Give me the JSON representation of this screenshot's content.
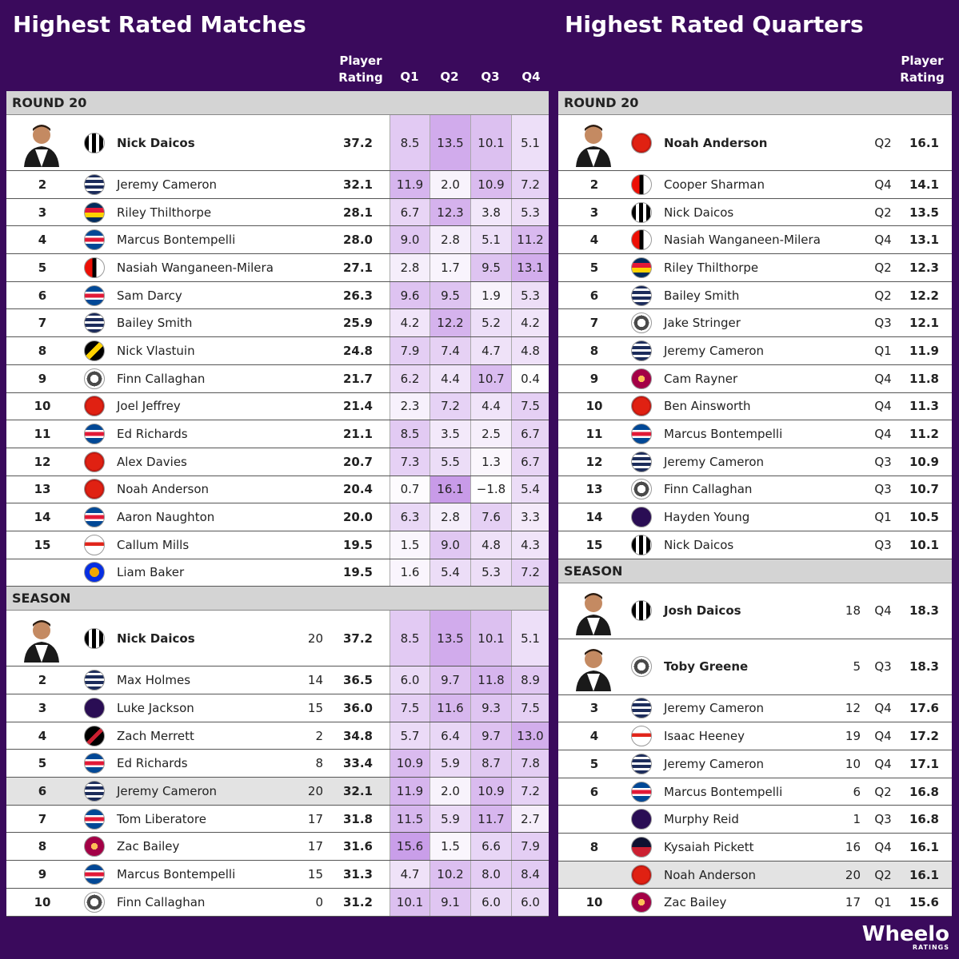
{
  "left": {
    "title": "Highest Rated Matches",
    "headers": {
      "rating": [
        "Player",
        "Rating"
      ],
      "q1": "Q1",
      "q2": "Q2",
      "q3": "Q3",
      "q4": "Q4"
    },
    "round_label": "ROUND 20",
    "season_label": "SEASON",
    "round_rows": [
      {
        "rank": "",
        "name": "Nick Daicos",
        "rating": "37.2",
        "q": [
          "8.5",
          "13.5",
          "10.1",
          "5.1"
        ],
        "team": "collingwood",
        "photo": true
      },
      {
        "rank": "2",
        "name": "Jeremy Cameron",
        "rating": "32.1",
        "q": [
          "11.9",
          "2.0",
          "10.9",
          "7.2"
        ],
        "team": "geelong"
      },
      {
        "rank": "3",
        "name": "Riley Thilthorpe",
        "rating": "28.1",
        "q": [
          "6.7",
          "12.3",
          "3.8",
          "5.3"
        ],
        "team": "adelaide"
      },
      {
        "rank": "4",
        "name": "Marcus Bontempelli",
        "rating": "28.0",
        "q": [
          "9.0",
          "2.8",
          "5.1",
          "11.2"
        ],
        "team": "bulldogs"
      },
      {
        "rank": "5",
        "name": "Nasiah Wanganeen-Milera",
        "rating": "27.1",
        "q": [
          "2.8",
          "1.7",
          "9.5",
          "13.1"
        ],
        "team": "stkilda"
      },
      {
        "rank": "6",
        "name": "Sam Darcy",
        "rating": "26.3",
        "q": [
          "9.6",
          "9.5",
          "1.9",
          "5.3"
        ],
        "team": "bulldogs"
      },
      {
        "rank": "7",
        "name": "Bailey Smith",
        "rating": "25.9",
        "q": [
          "4.2",
          "12.2",
          "5.2",
          "4.2"
        ],
        "team": "geelong"
      },
      {
        "rank": "8",
        "name": "Nick Vlastuin",
        "rating": "24.8",
        "q": [
          "7.9",
          "7.4",
          "4.7",
          "4.8"
        ],
        "team": "richmond"
      },
      {
        "rank": "9",
        "name": "Finn Callaghan",
        "rating": "21.7",
        "q": [
          "6.2",
          "4.4",
          "10.7",
          "0.4"
        ],
        "team": "gws"
      },
      {
        "rank": "10",
        "name": "Joel Jeffrey",
        "rating": "21.4",
        "q": [
          "2.3",
          "7.2",
          "4.4",
          "7.5"
        ],
        "team": "goldcoast"
      },
      {
        "rank": "11",
        "name": "Ed Richards",
        "rating": "21.1",
        "q": [
          "8.5",
          "3.5",
          "2.5",
          "6.7"
        ],
        "team": "bulldogs"
      },
      {
        "rank": "12",
        "name": "Alex Davies",
        "rating": "20.7",
        "q": [
          "7.3",
          "5.5",
          "1.3",
          "6.7"
        ],
        "team": "goldcoast"
      },
      {
        "rank": "13",
        "name": "Noah Anderson",
        "rating": "20.4",
        "q": [
          "0.7",
          "16.1",
          "−1.8",
          "5.4"
        ],
        "team": "goldcoast"
      },
      {
        "rank": "14",
        "name": "Aaron Naughton",
        "rating": "20.0",
        "q": [
          "6.3",
          "2.8",
          "7.6",
          "3.3"
        ],
        "team": "bulldogs"
      },
      {
        "rank": "15",
        "name": "Callum Mills",
        "rating": "19.5",
        "q": [
          "1.5",
          "9.0",
          "4.8",
          "4.3"
        ],
        "team": "sydney"
      },
      {
        "rank": "",
        "name": "Liam Baker",
        "rating": "19.5",
        "q": [
          "1.6",
          "5.4",
          "5.3",
          "7.2"
        ],
        "team": "westcoast"
      }
    ],
    "season_rows": [
      {
        "rank": "",
        "name": "Nick Daicos",
        "games": "20",
        "rating": "37.2",
        "q": [
          "8.5",
          "13.5",
          "10.1",
          "5.1"
        ],
        "team": "collingwood",
        "photo": true
      },
      {
        "rank": "2",
        "name": "Max Holmes",
        "games": "14",
        "rating": "36.5",
        "q": [
          "6.0",
          "9.7",
          "11.8",
          "8.9"
        ],
        "team": "geelong"
      },
      {
        "rank": "3",
        "name": "Luke Jackson",
        "games": "15",
        "rating": "36.0",
        "q": [
          "7.5",
          "11.6",
          "9.3",
          "7.5"
        ],
        "team": "fremantle"
      },
      {
        "rank": "4",
        "name": "Zach Merrett",
        "games": "2",
        "rating": "34.8",
        "q": [
          "5.7",
          "6.4",
          "9.7",
          "13.0"
        ],
        "team": "essendon"
      },
      {
        "rank": "5",
        "name": "Ed Richards",
        "games": "8",
        "rating": "33.4",
        "q": [
          "10.9",
          "5.9",
          "8.7",
          "7.8"
        ],
        "team": "bulldogs"
      },
      {
        "rank": "6",
        "name": "Jeremy Cameron",
        "games": "20",
        "rating": "32.1",
        "q": [
          "11.9",
          "2.0",
          "10.9",
          "7.2"
        ],
        "team": "geelong",
        "hl": true
      },
      {
        "rank": "7",
        "name": "Tom Liberatore",
        "games": "17",
        "rating": "31.8",
        "q": [
          "11.5",
          "5.9",
          "11.7",
          "2.7"
        ],
        "team": "bulldogs"
      },
      {
        "rank": "8",
        "name": "Zac Bailey",
        "games": "17",
        "rating": "31.6",
        "q": [
          "15.6",
          "1.5",
          "6.6",
          "7.9"
        ],
        "team": "brisbane"
      },
      {
        "rank": "9",
        "name": "Marcus Bontempelli",
        "games": "15",
        "rating": "31.3",
        "q": [
          "4.7",
          "10.2",
          "8.0",
          "8.4"
        ],
        "team": "bulldogs"
      },
      {
        "rank": "10",
        "name": "Finn Callaghan",
        "games": "0",
        "rating": "31.2",
        "q": [
          "10.1",
          "9.1",
          "6.0",
          "6.0"
        ],
        "team": "gws"
      }
    ]
  },
  "right": {
    "title": "Highest Rated Quarters",
    "headers": {
      "rating": [
        "Player",
        "Rating"
      ]
    },
    "round_label": "ROUND 20",
    "season_label": "SEASON",
    "round_rows": [
      {
        "rank": "",
        "name": "Noah Anderson",
        "quarter": "Q2",
        "rating": "16.1",
        "team": "goldcoast",
        "photo": true
      },
      {
        "rank": "2",
        "name": "Cooper Sharman",
        "quarter": "Q4",
        "rating": "14.1",
        "team": "stkilda"
      },
      {
        "rank": "3",
        "name": "Nick Daicos",
        "quarter": "Q2",
        "rating": "13.5",
        "team": "collingwood"
      },
      {
        "rank": "4",
        "name": "Nasiah Wanganeen-Milera",
        "quarter": "Q4",
        "rating": "13.1",
        "team": "stkilda"
      },
      {
        "rank": "5",
        "name": "Riley Thilthorpe",
        "quarter": "Q2",
        "rating": "12.3",
        "team": "adelaide"
      },
      {
        "rank": "6",
        "name": "Bailey Smith",
        "quarter": "Q2",
        "rating": "12.2",
        "team": "geelong"
      },
      {
        "rank": "7",
        "name": "Jake Stringer",
        "quarter": "Q3",
        "rating": "12.1",
        "team": "gws"
      },
      {
        "rank": "8",
        "name": "Jeremy Cameron",
        "quarter": "Q1",
        "rating": "11.9",
        "team": "geelong"
      },
      {
        "rank": "9",
        "name": "Cam Rayner",
        "quarter": "Q4",
        "rating": "11.8",
        "team": "brisbane"
      },
      {
        "rank": "10",
        "name": "Ben Ainsworth",
        "quarter": "Q4",
        "rating": "11.3",
        "team": "goldcoast"
      },
      {
        "rank": "11",
        "name": "Marcus Bontempelli",
        "quarter": "Q4",
        "rating": "11.2",
        "team": "bulldogs"
      },
      {
        "rank": "12",
        "name": "Jeremy Cameron",
        "quarter": "Q3",
        "rating": "10.9",
        "team": "geelong"
      },
      {
        "rank": "13",
        "name": "Finn Callaghan",
        "quarter": "Q3",
        "rating": "10.7",
        "team": "gws"
      },
      {
        "rank": "14",
        "name": "Hayden Young",
        "quarter": "Q1",
        "rating": "10.5",
        "team": "fremantle"
      },
      {
        "rank": "15",
        "name": "Nick Daicos",
        "quarter": "Q3",
        "rating": "10.1",
        "team": "collingwood"
      }
    ],
    "season_rows": [
      {
        "rank": "",
        "name": "Josh Daicos",
        "games": "18",
        "quarter": "Q4",
        "rating": "18.3",
        "team": "collingwood",
        "photo": true
      },
      {
        "rank": "",
        "name": "Toby Greene",
        "games": "5",
        "quarter": "Q3",
        "rating": "18.3",
        "team": "gws",
        "photo": true
      },
      {
        "rank": "3",
        "name": "Jeremy Cameron",
        "games": "12",
        "quarter": "Q4",
        "rating": "17.6",
        "team": "geelong"
      },
      {
        "rank": "4",
        "name": "Isaac Heeney",
        "games": "19",
        "quarter": "Q4",
        "rating": "17.2",
        "team": "sydney"
      },
      {
        "rank": "5",
        "name": "Jeremy Cameron",
        "games": "10",
        "quarter": "Q4",
        "rating": "17.1",
        "team": "geelong"
      },
      {
        "rank": "6",
        "name": "Marcus Bontempelli",
        "games": "6",
        "quarter": "Q2",
        "rating": "16.8",
        "team": "bulldogs"
      },
      {
        "rank": "",
        "name": "Murphy Reid",
        "games": "1",
        "quarter": "Q3",
        "rating": "16.8",
        "team": "fremantle"
      },
      {
        "rank": "8",
        "name": "Kysaiah Pickett",
        "games": "16",
        "quarter": "Q4",
        "rating": "16.1",
        "team": "melbourne"
      },
      {
        "rank": "",
        "name": "Noah Anderson",
        "games": "20",
        "quarter": "Q2",
        "rating": "16.1",
        "team": "goldcoast",
        "hl": true
      },
      {
        "rank": "10",
        "name": "Zac Bailey",
        "games": "17",
        "quarter": "Q1",
        "rating": "15.6",
        "team": "brisbane"
      }
    ]
  },
  "brand": {
    "name": "Wheelo",
    "sub": "RATINGS"
  },
  "colors": {
    "background": "#3a0a5c",
    "heat_max": "#c89be8"
  }
}
